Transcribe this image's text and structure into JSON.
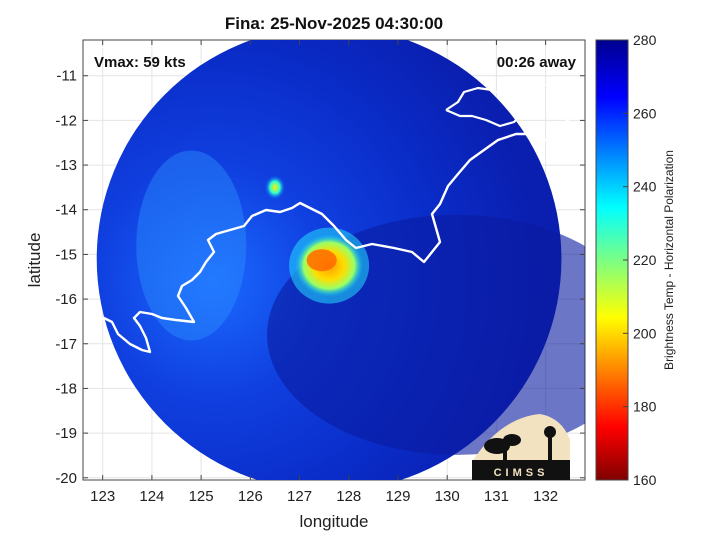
{
  "chart_data": {
    "type": "heatmap",
    "title": "Fina: 25-Nov-2025 04:30:00",
    "xlabel": "longitude",
    "ylabel": "latitude",
    "xlim": [
      122.6,
      132.8
    ],
    "ylim": [
      -20.05,
      -10.2
    ],
    "x_ticks": [
      123,
      124,
      125,
      126,
      127,
      128,
      129,
      130,
      131,
      132
    ],
    "y_ticks": [
      -11,
      -12,
      -13,
      -14,
      -15,
      -16,
      -17,
      -18,
      -19,
      -20
    ],
    "grid": true,
    "annotations": {
      "vmax": "Vmax: 59 kts",
      "time_away": "00:26 away"
    },
    "colorbar": {
      "label": "Brightness Temp - Horizontal Polarization",
      "range": [
        160,
        280
      ],
      "ticks": [
        280,
        260,
        240,
        220,
        200,
        180,
        160
      ],
      "colormap": "jet"
    },
    "swath": {
      "center_lon": 127.6,
      "center_lat": -15.1,
      "radius_deg": 4.95
    },
    "features": [
      {
        "name": "storm core (cold convection)",
        "lon": 127.6,
        "lat": -15.25,
        "min_value": 185
      },
      {
        "name": "cold spot",
        "lon": 126.5,
        "lat": -13.5,
        "min_value": 225
      }
    ],
    "background_value": 270,
    "logo_text": "CIMSS"
  },
  "colors": {
    "jet": [
      "#00008f",
      "#0000ff",
      "#00ffff",
      "#ffff00",
      "#ff0000",
      "#800000"
    ],
    "coastline": "#ffffff"
  }
}
